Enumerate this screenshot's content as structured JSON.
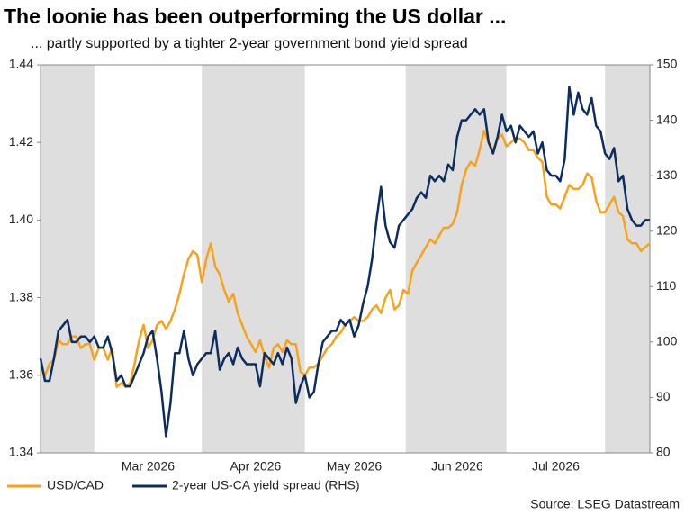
{
  "chart_data": {
    "type": "line",
    "title": "The loonie has been outperforming the US dollar ...",
    "subtitle": "... partly supported by a tighter 2-year government bond yield spread",
    "source": "Source: LSEG Datastream",
    "categories": [
      null,
      null,
      null,
      null,
      null,
      null,
      null,
      null,
      null,
      null,
      null,
      null,
      null,
      null,
      null,
      null,
      null,
      null,
      null,
      null,
      null,
      null,
      null,
      null,
      "Mar 2026",
      null,
      null,
      null,
      null,
      null,
      null,
      null,
      null,
      null,
      null,
      null,
      null,
      null,
      null,
      null,
      null,
      null,
      null,
      null,
      null,
      null,
      null,
      null,
      "Apr 2026",
      null,
      null,
      null,
      null,
      null,
      null,
      null,
      null,
      null,
      null,
      null,
      null,
      null,
      null,
      null,
      null,
      null,
      null,
      null,
      null,
      null,
      "May 2026",
      null,
      null,
      null,
      null,
      null,
      null,
      null,
      null,
      null,
      null,
      null,
      null,
      null,
      null,
      null,
      null,
      null,
      null,
      null,
      null,
      null,
      null,
      "Jun 2026",
      null,
      null,
      null,
      null,
      null,
      null,
      null,
      null,
      null,
      null,
      null,
      null,
      null,
      null,
      null,
      null,
      null,
      null,
      null,
      null,
      null,
      "Jul 2026",
      null,
      null,
      null,
      null,
      null,
      null,
      null,
      null,
      null,
      null,
      null,
      null,
      null,
      null,
      null,
      null,
      null,
      null,
      null,
      null,
      null
    ],
    "series": [
      {
        "name": "USD/CAD",
        "color": "#f7a21b",
        "axis": "y",
        "values": [
          1.362,
          1.36,
          1.363,
          1.364,
          1.369,
          1.368,
          1.368,
          1.37,
          1.37,
          1.367,
          1.368,
          1.368,
          1.364,
          1.367,
          1.367,
          1.364,
          1.367,
          1.357,
          1.358,
          1.357,
          1.358,
          1.363,
          1.369,
          1.373,
          1.367,
          1.369,
          1.373,
          1.374,
          1.372,
          1.374,
          1.377,
          1.381,
          1.386,
          1.39,
          1.392,
          1.391,
          1.384,
          1.39,
          1.394,
          1.388,
          1.386,
          1.382,
          1.379,
          1.381,
          1.376,
          1.373,
          1.37,
          1.368,
          1.366,
          1.369,
          1.365,
          1.362,
          1.367,
          1.368,
          1.366,
          1.369,
          1.368,
          1.368,
          1.361,
          1.36,
          1.362,
          1.362,
          1.363,
          1.365,
          1.367,
          1.368,
          1.37,
          1.371,
          1.373,
          1.374,
          1.375,
          1.374,
          1.374,
          1.375,
          1.377,
          1.378,
          1.376,
          1.38,
          1.382,
          1.377,
          1.378,
          1.382,
          1.381,
          1.387,
          1.389,
          1.391,
          1.393,
          1.395,
          1.394,
          1.396,
          1.398,
          1.398,
          1.399,
          1.402,
          1.409,
          1.413,
          1.415,
          1.414,
          1.418,
          1.423,
          1.42,
          1.418,
          1.421,
          1.422,
          1.419,
          1.42,
          1.421,
          1.421,
          1.42,
          1.418,
          1.418,
          1.416,
          1.415,
          1.406,
          1.404,
          1.404,
          1.403,
          1.406,
          1.409,
          1.408,
          1.408,
          1.409,
          1.412,
          1.411,
          1.405,
          1.402,
          1.402,
          1.404,
          1.406,
          1.402,
          1.401,
          1.395,
          1.394,
          1.394,
          1.392,
          1.393,
          1.394
        ]
      },
      {
        "name": "2-year US-CA yield spread (RHS)",
        "color": "#0c2d5e",
        "axis": "y2",
        "values": [
          97,
          93,
          93,
          97,
          102,
          103,
          104,
          100,
          100,
          101,
          101,
          100,
          101,
          99,
          99,
          101,
          98,
          93,
          94,
          92,
          92,
          94,
          96,
          98,
          101,
          102,
          97,
          91,
          83,
          89,
          98,
          98,
          102,
          97,
          94,
          96,
          97,
          98,
          98,
          102,
          95,
          97,
          98,
          96,
          99,
          97,
          96,
          96,
          96,
          92,
          98,
          97,
          96,
          98,
          96,
          99,
          97,
          89,
          92,
          94,
          90,
          91,
          96,
          100,
          101,
          102,
          102,
          104,
          103,
          104,
          101,
          103,
          107,
          110,
          115,
          122,
          128,
          121,
          118,
          117,
          121,
          122,
          123,
          124,
          126,
          127,
          126,
          130,
          129,
          130,
          129,
          132,
          131,
          137,
          140,
          140,
          141,
          142,
          141,
          142,
          136,
          134,
          137,
          141,
          138,
          139,
          136,
          139,
          138,
          137,
          138,
          134,
          136,
          131,
          130,
          130,
          129,
          133,
          146,
          141,
          145,
          142,
          141,
          144,
          139,
          138,
          134,
          133,
          135,
          129,
          130,
          124,
          122,
          121,
          121,
          122,
          122
        ]
      }
    ],
    "ylim": [
      1.34,
      1.44
    ],
    "yticks": [
      1.34,
      1.36,
      1.38,
      {
        "value": 1.4,
        "label": "1.40"
      },
      1.42,
      1.44
    ],
    "y2lim": [
      80,
      150
    ],
    "y2ticks": [
      80,
      90,
      100,
      110,
      120,
      130,
      140,
      150
    ],
    "shaded_bands": true,
    "legend": "bottom-left"
  }
}
